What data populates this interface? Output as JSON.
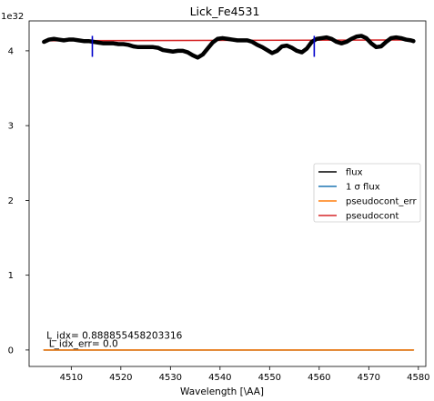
{
  "chart_data": {
    "type": "line",
    "title": "Lick_Fe4531",
    "xlabel": "Wavelength [\\AA]",
    "ylabel": "",
    "y_scale_label": "1e32",
    "xlim": [
      4501.5,
      4581.5
    ],
    "ylim": [
      -0.22,
      4.4
    ],
    "x_ticks": [
      4510,
      4520,
      4530,
      4540,
      4550,
      4560,
      4570,
      4580
    ],
    "x_tick_labels": [
      "4510",
      "4520",
      "4530",
      "4540",
      "4550",
      "4560",
      "4570",
      "4580"
    ],
    "y_ticks": [
      0,
      1,
      2,
      3,
      4
    ],
    "y_tick_labels": [
      "0",
      "1",
      "2",
      "3",
      "4"
    ],
    "grid": false,
    "legend_position": "center-right",
    "series": [
      {
        "name": "flux",
        "color": "#000000",
        "x": [
          4504.5,
          4505.5,
          4506.5,
          4507.5,
          4508.5,
          4509.5,
          4510.5,
          4511.5,
          4512.5,
          4513.5,
          4514.5,
          4515.5,
          4516.5,
          4517.5,
          4518.5,
          4519.5,
          4520.5,
          4521.5,
          4522.5,
          4523.5,
          4524.5,
          4525.5,
          4526.5,
          4527.5,
          4528.5,
          4529.5,
          4530.5,
          4531.5,
          4532.5,
          4533.5,
          4534.5,
          4535.5,
          4536.5,
          4537.5,
          4538.5,
          4539.5,
          4540.5,
          4541.5,
          4542.5,
          4543.5,
          4544.5,
          4545.5,
          4546.5,
          4547.5,
          4548.5,
          4549.5,
          4550.5,
          4551.5,
          4552.5,
          4553.5,
          4554.5,
          4555.5,
          4556.5,
          4557.5,
          4558.5,
          4559.5,
          4560.5,
          4561.5,
          4562.5,
          4563.5,
          4564.5,
          4565.5,
          4566.5,
          4567.5,
          4568.5,
          4569.5,
          4570.5,
          4571.5,
          4572.5,
          4573.5,
          4574.5,
          4575.5,
          4576.5,
          4577.5,
          4578.5,
          4579.0
        ],
        "y": [
          4.12,
          4.15,
          4.16,
          4.15,
          4.14,
          4.15,
          4.15,
          4.14,
          4.13,
          4.13,
          4.12,
          4.11,
          4.1,
          4.1,
          4.1,
          4.09,
          4.09,
          4.08,
          4.06,
          4.05,
          4.05,
          4.05,
          4.05,
          4.04,
          4.01,
          4.0,
          3.99,
          4.0,
          4.0,
          3.98,
          3.94,
          3.91,
          3.95,
          4.03,
          4.11,
          4.16,
          4.17,
          4.16,
          4.15,
          4.14,
          4.14,
          4.14,
          4.12,
          4.08,
          4.05,
          4.01,
          3.97,
          4.0,
          4.06,
          4.07,
          4.04,
          4.0,
          3.98,
          4.03,
          4.12,
          4.16,
          4.17,
          4.18,
          4.16,
          4.12,
          4.1,
          4.12,
          4.16,
          4.19,
          4.2,
          4.17,
          4.1,
          4.05,
          4.06,
          4.12,
          4.17,
          4.18,
          4.17,
          4.15,
          4.14,
          4.13
        ]
      },
      {
        "name": "1 σ flux",
        "color": "#1f77b4",
        "x": [
          4504.5,
          4579.0
        ],
        "y": [
          0.0,
          0.0
        ]
      },
      {
        "name": "pseudocont_err",
        "color": "#ff7f0e",
        "x": [
          4504.5,
          4579.0
        ],
        "y": [
          0.0,
          0.0
        ]
      },
      {
        "name": "pseudocont",
        "color": "#d62728",
        "x": [
          4504.5,
          4579.0
        ],
        "y": [
          4.135,
          4.145
        ]
      }
    ],
    "markers": [
      {
        "x": 4514.25,
        "y": [
          3.92,
          4.2
        ],
        "color": "#0000cc"
      },
      {
        "x": 4559.0,
        "y": [
          3.92,
          4.2
        ],
        "color": "#0000cc"
      }
    ],
    "annotations": [
      {
        "text": "L_idx= 0.888855458203316",
        "x": 4505.0,
        "y": 0.15
      },
      {
        "text": "L_idx_err= 0.0",
        "x": 4505.5,
        "y": 0.04
      }
    ]
  }
}
